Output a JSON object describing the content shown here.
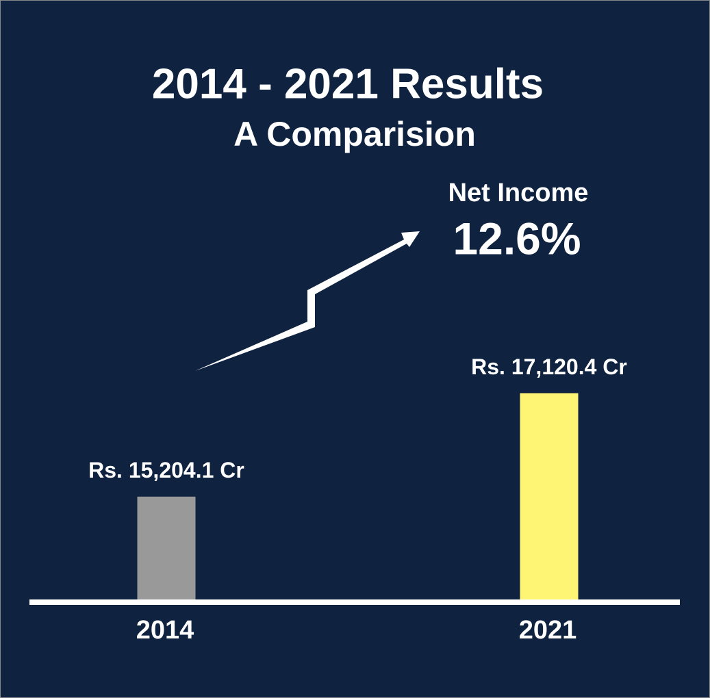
{
  "chart_data": {
    "type": "bar",
    "title": "2014 - 2021 Results",
    "subtitle": "A Comparision",
    "annotation": {
      "label": "Net Income",
      "value": "12.6%"
    },
    "categories": [
      "2014",
      "2021"
    ],
    "values": [
      15204.1,
      17120.4
    ],
    "value_labels": [
      "Rs. 15,204.1 Cr",
      "Rs. 17,120.4 Cr"
    ],
    "colors": [
      "#999999",
      "#fff575"
    ],
    "ylim": [
      13300,
      20600
    ]
  }
}
